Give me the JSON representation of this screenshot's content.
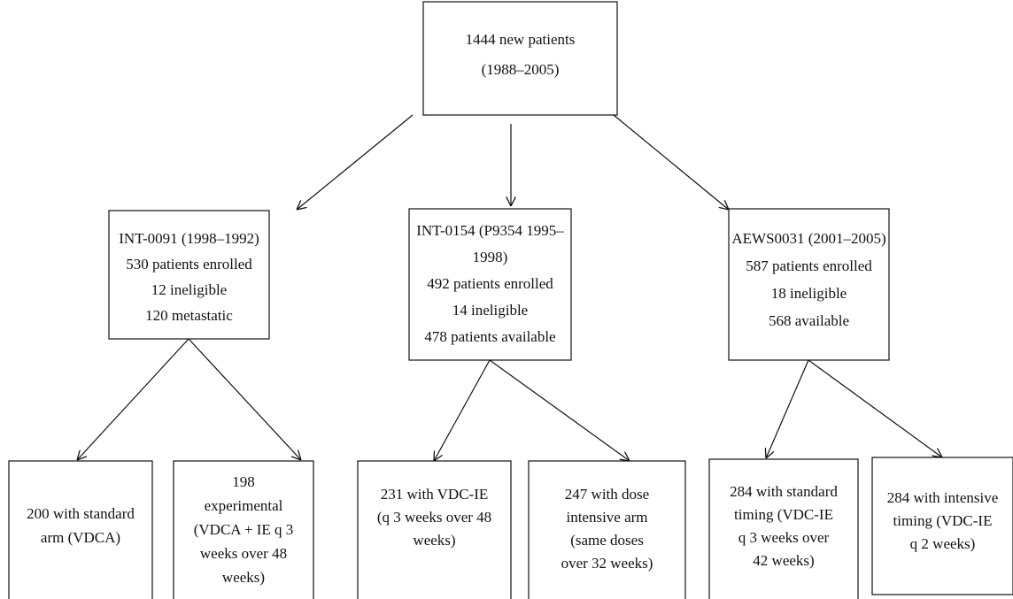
{
  "nodes": [
    {
      "lines": [
        "1444 new patients",
        "(1988–2005)"
      ]
    },
    {
      "lines": [
        "INT-0091 (1998–1992)",
        "530 patients enrolled",
        "12 ineligible",
        "120 metastatic"
      ]
    },
    {
      "lines": [
        "INT-0154 (P9354 1995–",
        "1998)",
        "492 patients enrolled",
        "14 ineligible",
        "478 patients available"
      ]
    },
    {
      "lines": [
        "AEWS0031 (2001–2005)",
        "587 patients enrolled",
        "18 ineligible",
        "568 available"
      ]
    },
    {
      "lines": [
        "200 with standard",
        "arm (VDCA)"
      ]
    },
    {
      "lines": [
        "198",
        "experimental",
        "(VDCA + IE q 3",
        "weeks over 48",
        "weeks)"
      ]
    },
    {
      "lines": [
        "231 with VDC-IE",
        "(q 3 weeks over 48",
        "weeks)"
      ]
    },
    {
      "lines": [
        "247 with dose",
        "intensive arm",
        "(same doses",
        "over 32 weeks)"
      ]
    },
    {
      "lines": [
        "284 with standard",
        "timing (VDC-IE",
        "q 3 weeks over",
        "42 weeks)"
      ]
    },
    {
      "lines": [
        "284 with intensive",
        "timing (VDC-IE",
        "q 2 weeks)"
      ]
    }
  ]
}
